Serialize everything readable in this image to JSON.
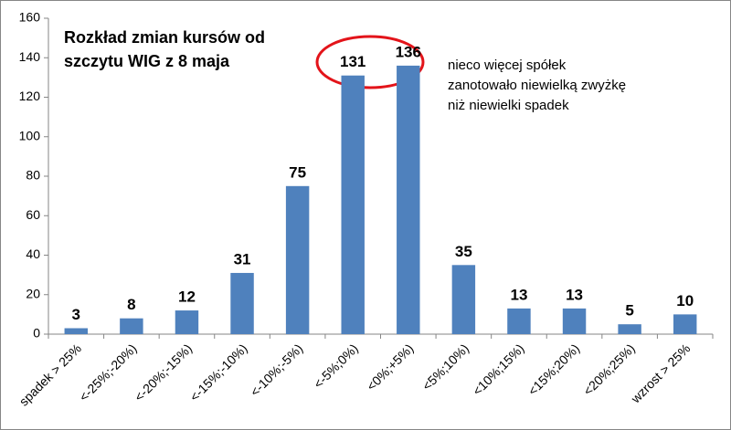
{
  "chart_data": {
    "type": "bar",
    "title": [
      "Rozkład zmian kursów od",
      "szczytu WIG z 8 maja"
    ],
    "annotation": [
      "nieco więcej spółek",
      "zanotowało niewielką zwyżkę",
      "niż niewielki spadek"
    ],
    "categories": [
      "spadek > 25%",
      "<-25%;-20%)",
      "<-20%;-15%)",
      "<-15%;-10%)",
      "<-10%;-5%)",
      "<-5%;0%)",
      "<0%;+5%)",
      "<5%;10%)",
      "<10%;15%)",
      "<15%;20%)",
      "<20%;25%)",
      "wzrost > 25%"
    ],
    "values": [
      3,
      8,
      12,
      31,
      75,
      131,
      136,
      35,
      13,
      13,
      5,
      10
    ],
    "color": "#4f81bd",
    "ylim": [
      0,
      160
    ],
    "yticks": [
      0,
      20,
      40,
      60,
      80,
      100,
      120,
      140,
      160
    ],
    "grid": false
  }
}
